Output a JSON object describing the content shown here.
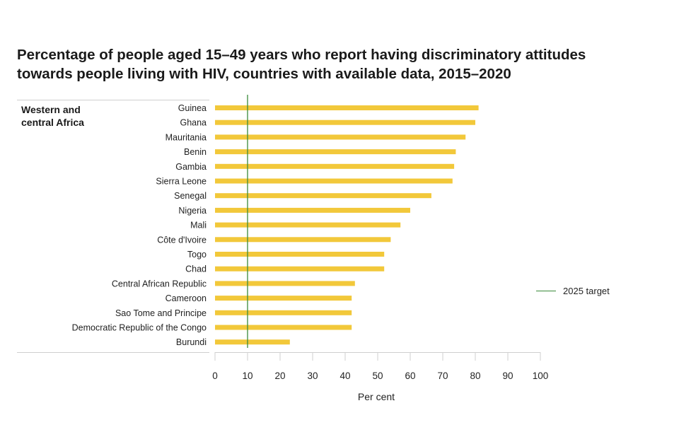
{
  "title_lines": [
    "Percentage of people aged 15–49 years who report having discriminatory attitudes",
    "towards people living with HIV, countries with available data, 2015–2020"
  ],
  "group_label_lines": [
    "Western and",
    "central Africa"
  ],
  "legend": {
    "target_label": "2025 target"
  },
  "colors": {
    "bar": "#f2c83a",
    "target": "#3a8a3a",
    "axis": "#cfcfcf",
    "text": "#222222"
  },
  "chart_data": {
    "type": "bar",
    "orientation": "horizontal",
    "title": "Percentage of people aged 15–49 years who report having discriminatory attitudes towards people living with HIV, countries with available data, 2015–2020",
    "group": "Western and central Africa",
    "categories": [
      "Guinea",
      "Ghana",
      "Mauritania",
      "Benin",
      "Gambia",
      "Sierra Leone",
      "Senegal",
      "Nigeria",
      "Mali",
      "Côte d'Ivoire",
      "Togo",
      "Chad",
      "Central African Republic",
      "Cameroon",
      "Sao Tome and Principe",
      "Democratic Republic of the Congo",
      "Burundi"
    ],
    "values": [
      81,
      80,
      77,
      74,
      73.5,
      73,
      66.5,
      60,
      57,
      54,
      52,
      52,
      43,
      42,
      42,
      42,
      23
    ],
    "target": 10,
    "xlabel": "Per cent",
    "ylabel": "",
    "xlim": [
      0,
      100
    ],
    "xticks": [
      0,
      10,
      20,
      30,
      40,
      50,
      60,
      70,
      80,
      90,
      100
    ],
    "grid": false,
    "legend_position": "right"
  }
}
